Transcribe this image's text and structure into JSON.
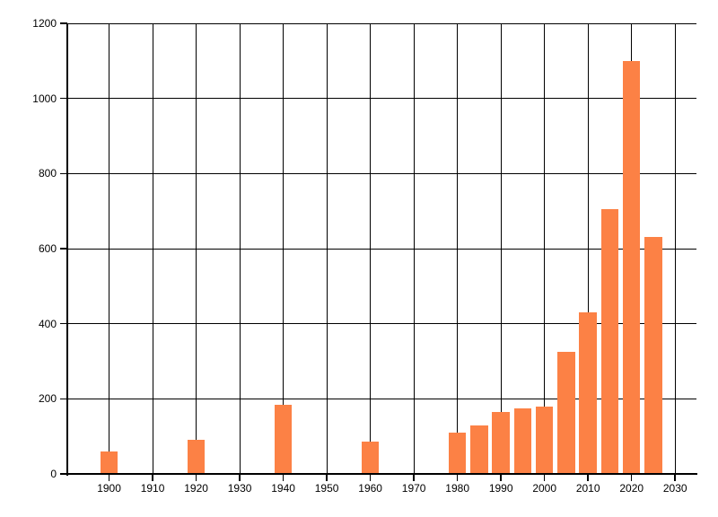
{
  "chart_data": {
    "type": "bar",
    "title": "",
    "xlabel": "",
    "ylabel": "",
    "x": [
      1900,
      1920,
      1940,
      1960,
      1980,
      1985,
      1990,
      1995,
      2000,
      2005,
      2010,
      2015,
      2020,
      2025
    ],
    "values": [
      60,
      90,
      185,
      85,
      110,
      130,
      165,
      175,
      180,
      325,
      430,
      705,
      1100,
      630
    ],
    "xlim": [
      1890.3,
      2034.9
    ],
    "ylim": [
      0,
      1200
    ],
    "x_ticks": [
      1900,
      1910,
      1920,
      1930,
      1940,
      1950,
      1960,
      1970,
      1980,
      1990,
      2000,
      2010,
      2020,
      2030
    ],
    "y_ticks": [
      0,
      200,
      400,
      600,
      800,
      1000,
      1200
    ],
    "grid": true,
    "legend": false,
    "bar_color": "#FC8145",
    "grid_color": "#000000",
    "axis_color": "#000000",
    "label_color": "#000000",
    "background_color": "#FFFFFF"
  }
}
